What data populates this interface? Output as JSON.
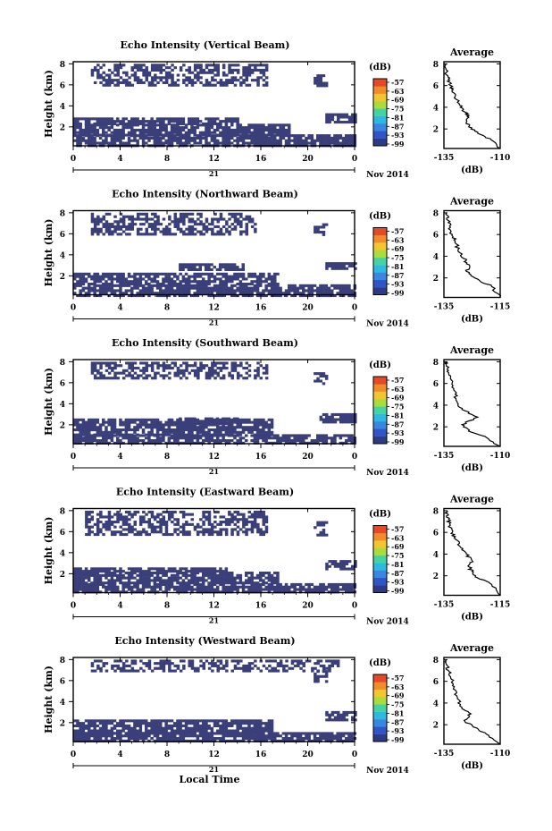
{
  "figure": {
    "x_axis_title": "Local Time",
    "colorbar_unit": "(dB)",
    "profile_title": "Average",
    "profile_xlabel": "(dB)",
    "date_label": "Nov 2014",
    "day_label": "21"
  },
  "chart_data": [
    {
      "type": "heatmap",
      "title": "Echo Intensity (Vertical Beam)",
      "ylabel": "Height (km)",
      "xlabel": "",
      "x_ticks": [
        "0",
        "4",
        "8",
        "12",
        "16",
        "20",
        "0"
      ],
      "x_range_hours": [
        0,
        24
      ],
      "y_ticks": [
        "2",
        "4",
        "6",
        "8"
      ],
      "ylim_km": [
        0.2,
        8.2
      ],
      "colorbar_ticks": [
        "-57",
        "-63",
        "-69",
        "-75",
        "-81",
        "-87",
        "-93",
        "-99"
      ],
      "echo_regions": [
        {
          "t0": 0.0,
          "t1": 24.0,
          "h0": 0.2,
          "h1": 1.3
        },
        {
          "t0": 0.0,
          "t1": 18.5,
          "h0": 1.3,
          "h1": 2.3
        },
        {
          "t0": 0.0,
          "t1": 14.0,
          "h0": 2.3,
          "h1": 2.9
        },
        {
          "t0": 21.5,
          "t1": 24.0,
          "h0": 2.4,
          "h1": 3.3
        },
        {
          "t0": 1.5,
          "t1": 16.5,
          "h0": 6.0,
          "h1": 8.0
        },
        {
          "t0": 20.5,
          "t1": 21.5,
          "h0": 6.0,
          "h1": 7.0
        }
      ],
      "average_profile": {
        "xlim": [
          -135,
          -110
        ],
        "x_ticks": [
          "-135",
          "-110"
        ],
        "y_ticks": [
          "2",
          "4",
          "6",
          "8"
        ],
        "ylim_km": [
          0.2,
          8.2
        ],
        "x": [
          -110,
          -114,
          -120,
          -124,
          -125,
          -124,
          -126,
          -128,
          -130,
          -131,
          -132,
          -133,
          -134,
          -134
        ],
        "y": [
          0.2,
          1.0,
          1.6,
          2.2,
          2.8,
          3.2,
          3.6,
          4.2,
          5.0,
          5.6,
          6.0,
          6.6,
          7.2,
          8.0
        ]
      }
    },
    {
      "type": "heatmap",
      "title": "Echo Intensity (Northward Beam)",
      "ylabel": "Height (km)",
      "xlabel": "",
      "x_ticks": [
        "0",
        "4",
        "8",
        "12",
        "16",
        "20",
        "0"
      ],
      "x_range_hours": [
        0,
        24
      ],
      "y_ticks": [
        "2",
        "4",
        "6",
        "8"
      ],
      "ylim_km": [
        0.2,
        8.2
      ],
      "colorbar_ticks": [
        "-57",
        "-63",
        "-69",
        "-75",
        "-81",
        "-87",
        "-93",
        "-99"
      ],
      "echo_regions": [
        {
          "t0": 0.0,
          "t1": 24.0,
          "h0": 0.2,
          "h1": 1.2
        },
        {
          "t0": 0.0,
          "t1": 17.5,
          "h0": 1.2,
          "h1": 2.3
        },
        {
          "t0": 9.0,
          "t1": 14.5,
          "h0": 2.5,
          "h1": 3.2
        },
        {
          "t0": 21.5,
          "t1": 24.0,
          "h0": 2.6,
          "h1": 3.3
        },
        {
          "t0": 1.5,
          "t1": 15.5,
          "h0": 6.0,
          "h1": 8.0
        },
        {
          "t0": 20.5,
          "t1": 21.5,
          "h0": 6.0,
          "h1": 7.0
        }
      ],
      "average_profile": {
        "xlim": [
          -135,
          -115
        ],
        "x_ticks": [
          "-135",
          "-115"
        ],
        "y_ticks": [
          "2",
          "4",
          "6",
          "8"
        ],
        "ylim_km": [
          0.2,
          8.2
        ],
        "x": [
          -115,
          -118,
          -124,
          -127,
          -126,
          -128,
          -130,
          -131,
          -132,
          -133,
          -134,
          -134
        ],
        "y": [
          0.2,
          1.2,
          2.0,
          2.6,
          3.2,
          3.8,
          4.6,
          5.4,
          6.0,
          6.8,
          7.4,
          8.0
        ]
      }
    },
    {
      "type": "heatmap",
      "title": "Echo Intensity (Southward Beam)",
      "ylabel": "Height (km)",
      "xlabel": "",
      "x_ticks": [
        "0",
        "4",
        "8",
        "12",
        "16",
        "20",
        "0"
      ],
      "x_range_hours": [
        0,
        24
      ],
      "y_ticks": [
        "2",
        "4",
        "6",
        "8"
      ],
      "ylim_km": [
        0.2,
        8.2
      ],
      "colorbar_ticks": [
        "-57",
        "-63",
        "-69",
        "-75",
        "-81",
        "-87",
        "-93",
        "-99"
      ],
      "echo_regions": [
        {
          "t0": 0.0,
          "t1": 24.0,
          "h0": 0.2,
          "h1": 1.1
        },
        {
          "t0": 0.0,
          "t1": 17.0,
          "h0": 1.1,
          "h1": 2.6
        },
        {
          "t0": 9.0,
          "t1": 14.0,
          "h0": 2.0,
          "h1": 2.7
        },
        {
          "t0": 21.0,
          "t1": 24.0,
          "h0": 2.3,
          "h1": 3.1
        },
        {
          "t0": 1.5,
          "t1": 16.5,
          "h0": 6.5,
          "h1": 8.0
        },
        {
          "t0": 20.5,
          "t1": 21.5,
          "h0": 6.0,
          "h1": 7.0
        }
      ],
      "average_profile": {
        "xlim": [
          -135,
          -110
        ],
        "x_ticks": [
          "-135",
          "-110"
        ],
        "y_ticks": [
          "2",
          "4",
          "6",
          "8"
        ],
        "ylim_km": [
          0.2,
          8.2
        ],
        "x": [
          -110,
          -116,
          -124,
          -127,
          -120,
          -127,
          -129,
          -130,
          -131,
          -132,
          -133,
          -134,
          -134
        ],
        "y": [
          0.2,
          1.0,
          1.6,
          2.2,
          2.9,
          3.6,
          4.2,
          5.0,
          5.8,
          6.6,
          7.2,
          7.8,
          8.0
        ]
      }
    },
    {
      "type": "heatmap",
      "title": "Echo Intensity (Eastward Beam)",
      "ylabel": "Height (km)",
      "xlabel": "",
      "x_ticks": [
        "0",
        "4",
        "8",
        "12",
        "16",
        "20",
        "0"
      ],
      "x_range_hours": [
        0,
        24
      ],
      "y_ticks": [
        "2",
        "4",
        "6",
        "8"
      ],
      "ylim_km": [
        0.2,
        8.2
      ],
      "colorbar_ticks": [
        "-57",
        "-63",
        "-69",
        "-75",
        "-81",
        "-87",
        "-93",
        "-99"
      ],
      "echo_regions": [
        {
          "t0": 0.0,
          "t1": 24.0,
          "h0": 0.2,
          "h1": 1.1
        },
        {
          "t0": 0.0,
          "t1": 17.5,
          "h0": 1.1,
          "h1": 2.2
        },
        {
          "t0": 0.0,
          "t1": 13.0,
          "h0": 2.2,
          "h1": 2.6
        },
        {
          "t0": 21.5,
          "t1": 24.0,
          "h0": 2.5,
          "h1": 3.3
        },
        {
          "t0": 1.0,
          "t1": 16.5,
          "h0": 5.8,
          "h1": 8.0
        },
        {
          "t0": 20.5,
          "t1": 21.5,
          "h0": 5.6,
          "h1": 7.0
        }
      ],
      "average_profile": {
        "xlim": [
          -135,
          -115
        ],
        "x_ticks": [
          "-135",
          "-115"
        ],
        "y_ticks": [
          "2",
          "4",
          "6",
          "8"
        ],
        "ylim_km": [
          0.2,
          8.2
        ],
        "x": [
          -115,
          -118,
          -123,
          -125,
          -126,
          -125,
          -127,
          -129,
          -131,
          -132,
          -133,
          -134,
          -134
        ],
        "y": [
          0.2,
          1.2,
          1.8,
          2.4,
          2.8,
          3.4,
          4.0,
          4.6,
          5.4,
          6.0,
          6.8,
          7.4,
          8.0
        ]
      }
    },
    {
      "type": "heatmap",
      "title": "Echo Intensity (Westward Beam)",
      "ylabel": "Height (km)",
      "xlabel": "Local Time",
      "x_ticks": [
        "0",
        "4",
        "8",
        "12",
        "16",
        "20",
        "0"
      ],
      "x_range_hours": [
        0,
        24
      ],
      "y_ticks": [
        "2",
        "4",
        "6",
        "8"
      ],
      "ylim_km": [
        0.2,
        8.2
      ],
      "colorbar_ticks": [
        "-57",
        "-63",
        "-69",
        "-75",
        "-81",
        "-87",
        "-93",
        "-99"
      ],
      "echo_regions": [
        {
          "t0": 0.0,
          "t1": 24.0,
          "h0": 0.2,
          "h1": 1.1
        },
        {
          "t0": 0.0,
          "t1": 17.0,
          "h0": 1.1,
          "h1": 2.3
        },
        {
          "t0": 21.5,
          "t1": 24.0,
          "h0": 2.3,
          "h1": 3.1
        },
        {
          "t0": 1.5,
          "t1": 22.5,
          "h0": 7.0,
          "h1": 8.0
        },
        {
          "t0": 20.5,
          "t1": 21.5,
          "h0": 6.0,
          "h1": 7.0
        }
      ],
      "average_profile": {
        "xlim": [
          -135,
          -110
        ],
        "x_ticks": [
          "-135",
          "-110"
        ],
        "y_ticks": [
          "2",
          "4",
          "6",
          "8"
        ],
        "ylim_km": [
          0.2,
          8.2
        ],
        "x": [
          -110,
          -115,
          -122,
          -126,
          -123,
          -127,
          -129,
          -130,
          -131,
          -132,
          -133,
          -134,
          -134
        ],
        "y": [
          0.2,
          1.0,
          1.8,
          2.4,
          3.0,
          3.6,
          4.4,
          5.2,
          5.8,
          6.4,
          7.0,
          7.6,
          8.0
        ]
      }
    }
  ]
}
